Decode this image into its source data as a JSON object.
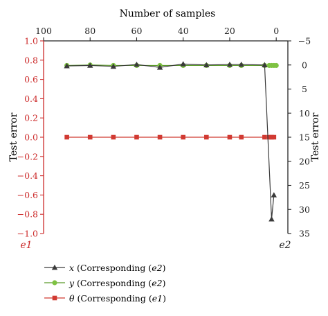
{
  "colors": {
    "axis_black": "#222222",
    "axis_red": "#cc2b2b",
    "axis_gray": "#555555",
    "series_x": "#3a3a3a",
    "series_y": "#7ec242",
    "series_y_line": "#5b9b2a",
    "series_theta": "#d13a32"
  },
  "chart_data": {
    "type": "line",
    "top_axis": {
      "label": "Number of samples",
      "range": [
        100,
        -5
      ],
      "ticks": [
        100,
        80,
        60,
        40,
        20,
        0
      ]
    },
    "left_axis": {
      "label": "Test error",
      "unit_label": "e1",
      "range": [
        -1.0,
        1.0
      ],
      "ticks": [
        1.0,
        0.8,
        0.6,
        0.4,
        0.2,
        0.0,
        -0.2,
        -0.4,
        -0.6,
        -0.8,
        -1.0
      ],
      "tick_labels": [
        "1.0",
        "0.8",
        "0.6",
        "0.4",
        "0.2",
        "0.0",
        "−0.2",
        "−0.4",
        "−0.6",
        "−0.8",
        "−1.0"
      ]
    },
    "right_axis": {
      "label": "Test error",
      "unit_label": "e2",
      "range": [
        -5,
        35
      ],
      "inverted": true,
      "ticks": [
        -5,
        0,
        5,
        10,
        15,
        20,
        25,
        30,
        35
      ],
      "tick_labels": [
        "−5",
        "0",
        "5",
        "10",
        "15",
        "20",
        "25",
        "30",
        "35"
      ]
    },
    "series": [
      {
        "key": "x",
        "legend_symbol": "x",
        "legend_text": " (Corresponding (",
        "legend_axis": "e2",
        "legend_close": ")",
        "axis": "right",
        "marker": "triangle",
        "x": [
          90,
          80,
          70,
          60,
          50,
          40,
          30,
          20,
          15,
          5,
          2,
          1
        ],
        "y": [
          0.2,
          0.1,
          0.3,
          -0.1,
          0.5,
          -0.2,
          0.0,
          -0.1,
          -0.1,
          0.0,
          32.0,
          27.0
        ]
      },
      {
        "key": "y",
        "legend_symbol": "y",
        "legend_text": " (Corresponding (",
        "legend_axis": "e2",
        "legend_close": ")",
        "axis": "right",
        "marker": "circle",
        "x": [
          90,
          80,
          70,
          60,
          50,
          40,
          30,
          20,
          15,
          5,
          3,
          2,
          1,
          0
        ],
        "y": [
          0.1,
          0.0,
          0.1,
          0.1,
          0.1,
          0.1,
          0.1,
          0.1,
          0.1,
          0.1,
          0.1,
          0.1,
          0.1,
          0.1
        ]
      },
      {
        "key": "theta",
        "legend_symbol": "θ",
        "legend_text": " (Corresponding (",
        "legend_axis": "e1",
        "legend_close": ")",
        "axis": "left",
        "marker": "square",
        "x": [
          90,
          80,
          70,
          60,
          50,
          40,
          30,
          20,
          15,
          5,
          3,
          2,
          1
        ],
        "y": [
          0.0,
          0.0,
          0.0,
          0.0,
          0.0,
          0.0,
          0.0,
          0.0,
          0.0,
          0.0,
          0.0,
          0.0,
          0.0
        ]
      }
    ]
  }
}
